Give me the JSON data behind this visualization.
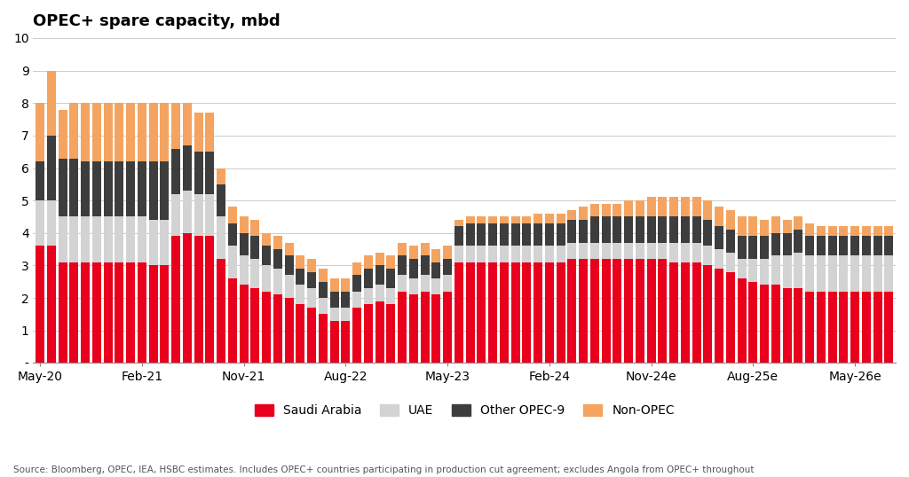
{
  "title": "OPEC+ spare capacity, mbd",
  "source_text": "Source: Bloomberg, OPEC, IEA, HSBC estimates. Includes OPEC+ countries participating in production cut agreement; excludes Angola from OPEC+ throughout",
  "colors": {
    "saudi_arabia": "#e8001c",
    "uae": "#d3d3d3",
    "other_opec9": "#3d3d3d",
    "non_opec": "#f4a460"
  },
  "ylim_max": 10,
  "ytick_labels": [
    "-",
    "1",
    "2",
    "3",
    "4",
    "5",
    "6",
    "7",
    "8",
    "9",
    "10"
  ],
  "xtick_labels": [
    "May-20",
    "Feb-21",
    "Nov-21",
    "Aug-22",
    "May-23",
    "Feb-24",
    "Nov-24e",
    "Aug-25e",
    "May-26e"
  ],
  "xtick_positions": [
    0,
    9,
    18,
    27,
    36,
    45,
    54,
    63,
    72
  ],
  "saudi_arabia": [
    3.6,
    3.6,
    3.1,
    3.1,
    3.1,
    3.1,
    3.1,
    3.1,
    3.1,
    3.1,
    3.0,
    3.0,
    3.9,
    4.0,
    3.9,
    3.9,
    3.2,
    2.6,
    2.4,
    2.3,
    2.2,
    2.1,
    2.0,
    1.8,
    1.7,
    1.5,
    1.3,
    1.3,
    1.7,
    1.8,
    1.9,
    1.8,
    2.2,
    2.1,
    2.2,
    2.1,
    2.2,
    3.1,
    3.1,
    3.1,
    3.1,
    3.1,
    3.1,
    3.1,
    3.1,
    3.1,
    3.1,
    3.2,
    3.2,
    3.2,
    3.2,
    3.2,
    3.2,
    3.2,
    3.2,
    3.2,
    3.1,
    3.1,
    3.1,
    3.0,
    2.9,
    2.8,
    2.6,
    2.5,
    2.4,
    2.4,
    2.3,
    2.3,
    2.2,
    2.2,
    2.2,
    2.2,
    2.2,
    2.2,
    2.2,
    2.2
  ],
  "uae": [
    1.4,
    1.4,
    1.4,
    1.4,
    1.4,
    1.4,
    1.4,
    1.4,
    1.4,
    1.4,
    1.4,
    1.4,
    1.3,
    1.3,
    1.3,
    1.3,
    1.3,
    1.0,
    0.9,
    0.9,
    0.8,
    0.8,
    0.7,
    0.6,
    0.6,
    0.5,
    0.4,
    0.4,
    0.5,
    0.5,
    0.5,
    0.5,
    0.5,
    0.5,
    0.5,
    0.5,
    0.5,
    0.5,
    0.5,
    0.5,
    0.5,
    0.5,
    0.5,
    0.5,
    0.5,
    0.5,
    0.5,
    0.5,
    0.5,
    0.5,
    0.5,
    0.5,
    0.5,
    0.5,
    0.5,
    0.5,
    0.6,
    0.6,
    0.6,
    0.6,
    0.6,
    0.6,
    0.6,
    0.7,
    0.8,
    0.9,
    1.0,
    1.1,
    1.1,
    1.1,
    1.1,
    1.1,
    1.1,
    1.1,
    1.1,
    1.1
  ],
  "other_opec9": [
    1.2,
    2.0,
    1.8,
    1.8,
    1.7,
    1.7,
    1.7,
    1.7,
    1.7,
    1.7,
    1.8,
    1.8,
    1.4,
    1.4,
    1.3,
    1.3,
    1.0,
    0.7,
    0.7,
    0.7,
    0.6,
    0.6,
    0.6,
    0.5,
    0.5,
    0.5,
    0.5,
    0.5,
    0.5,
    0.6,
    0.6,
    0.6,
    0.6,
    0.6,
    0.6,
    0.5,
    0.5,
    0.6,
    0.7,
    0.7,
    0.7,
    0.7,
    0.7,
    0.7,
    0.7,
    0.7,
    0.7,
    0.7,
    0.7,
    0.8,
    0.8,
    0.8,
    0.8,
    0.8,
    0.8,
    0.8,
    0.8,
    0.8,
    0.8,
    0.8,
    0.7,
    0.7,
    0.7,
    0.7,
    0.7,
    0.7,
    0.7,
    0.7,
    0.6,
    0.6,
    0.6,
    0.6,
    0.6,
    0.6,
    0.6,
    0.6
  ],
  "non_opec": [
    1.8,
    2.0,
    1.5,
    1.7,
    1.8,
    1.8,
    1.8,
    1.8,
    1.8,
    1.8,
    1.8,
    1.8,
    1.4,
    1.3,
    1.2,
    1.2,
    0.5,
    0.5,
    0.5,
    0.5,
    0.4,
    0.4,
    0.4,
    0.4,
    0.4,
    0.4,
    0.4,
    0.4,
    0.4,
    0.4,
    0.4,
    0.4,
    0.4,
    0.4,
    0.4,
    0.4,
    0.4,
    0.2,
    0.2,
    0.2,
    0.2,
    0.2,
    0.2,
    0.2,
    0.3,
    0.3,
    0.3,
    0.3,
    0.4,
    0.4,
    0.4,
    0.4,
    0.5,
    0.5,
    0.6,
    0.6,
    0.6,
    0.6,
    0.6,
    0.6,
    0.6,
    0.6,
    0.6,
    0.6,
    0.5,
    0.5,
    0.4,
    0.4,
    0.4,
    0.3,
    0.3,
    0.3,
    0.3,
    0.3,
    0.3,
    0.3
  ]
}
